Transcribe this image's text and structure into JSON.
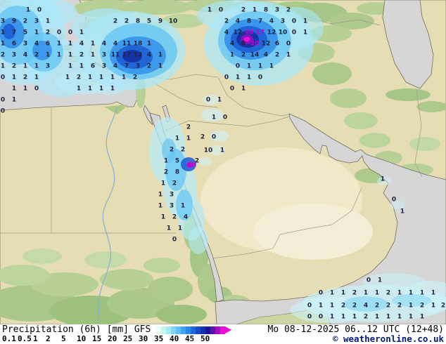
{
  "title_bar": {
    "product": "Precipitation (6h) [mm] GFS",
    "datetime": "Mo 08-12-2025 06..12 UTC (12+48)",
    "copyright": "© weatheronline.co.uk"
  },
  "legend": {
    "ticks": [
      "0.1",
      "0.5",
      "1",
      "2",
      "5",
      "10",
      "15",
      "20",
      "25",
      "30",
      "35",
      "40",
      "45",
      "50"
    ],
    "colors": [
      "#e8fdf9",
      "#c8f5f0",
      "#a5e9f2",
      "#7fd6f4",
      "#5cc0f5",
      "#3fa5f2",
      "#2b86ea",
      "#1f66dc",
      "#1847c8",
      "#1230b2",
      "#1b1698",
      "#5a12aa",
      "#a50fc4",
      "#ee0ed8"
    ]
  },
  "map": {
    "colors": {
      "sea": "#d6d6d6",
      "land": "#e7ddb4",
      "vegetation": "#b7d096",
      "value_text": "#23233f",
      "value_text_high": "#c400cc"
    },
    "points": [
      [
        40,
        15,
        "1"
      ],
      [
        56,
        15,
        "0"
      ],
      [
        4,
        31,
        "3"
      ],
      [
        20,
        31,
        "9"
      ],
      [
        36,
        31,
        "2"
      ],
      [
        52,
        31,
        "3"
      ],
      [
        68,
        31,
        "1"
      ],
      [
        4,
        47,
        "1"
      ],
      [
        20,
        47,
        "7"
      ],
      [
        36,
        47,
        "5"
      ],
      [
        52,
        47,
        "1"
      ],
      [
        68,
        47,
        "2"
      ],
      [
        84,
        47,
        "0"
      ],
      [
        4,
        63,
        "1"
      ],
      [
        20,
        63,
        "6"
      ],
      [
        36,
        63,
        "3"
      ],
      [
        52,
        63,
        "4"
      ],
      [
        68,
        63,
        "6"
      ],
      [
        84,
        63,
        "1"
      ],
      [
        4,
        79,
        "2"
      ],
      [
        20,
        79,
        "3"
      ],
      [
        36,
        79,
        "4"
      ],
      [
        52,
        79,
        "2"
      ],
      [
        68,
        79,
        "1"
      ],
      [
        84,
        79,
        "1"
      ],
      [
        4,
        95,
        "1"
      ],
      [
        20,
        95,
        "2"
      ],
      [
        36,
        95,
        "1"
      ],
      [
        52,
        95,
        "1"
      ],
      [
        68,
        95,
        "3"
      ],
      [
        4,
        111,
        "0"
      ],
      [
        20,
        111,
        "1"
      ],
      [
        36,
        111,
        "2"
      ],
      [
        52,
        111,
        "1"
      ],
      [
        20,
        127,
        "1"
      ],
      [
        36,
        127,
        "1"
      ],
      [
        52,
        127,
        "0"
      ],
      [
        4,
        143,
        "0"
      ],
      [
        20,
        143,
        "1"
      ],
      [
        4,
        159,
        "0"
      ],
      [
        100,
        47,
        "0"
      ],
      [
        116,
        47,
        "1"
      ],
      [
        164,
        31,
        "2"
      ],
      [
        180,
        31,
        "2"
      ],
      [
        196,
        31,
        "8"
      ],
      [
        212,
        31,
        "5"
      ],
      [
        228,
        31,
        "9"
      ],
      [
        246,
        31,
        "10"
      ],
      [
        100,
        63,
        "1"
      ],
      [
        116,
        63,
        "4"
      ],
      [
        132,
        63,
        "1"
      ],
      [
        148,
        63,
        "4"
      ],
      [
        164,
        63,
        "4"
      ],
      [
        180,
        63,
        "11"
      ],
      [
        196,
        63,
        "18"
      ],
      [
        212,
        63,
        "1"
      ],
      [
        100,
        79,
        "1"
      ],
      [
        116,
        79,
        "2"
      ],
      [
        132,
        79,
        "1"
      ],
      [
        148,
        79,
        "3"
      ],
      [
        164,
        79,
        "11"
      ],
      [
        180,
        79,
        "17"
      ],
      [
        196,
        79,
        "12"
      ],
      [
        212,
        79,
        "4"
      ],
      [
        228,
        79,
        "1"
      ],
      [
        100,
        95,
        "1"
      ],
      [
        116,
        95,
        "1"
      ],
      [
        132,
        95,
        "6"
      ],
      [
        148,
        95,
        "3"
      ],
      [
        164,
        95,
        "4"
      ],
      [
        180,
        95,
        "7"
      ],
      [
        196,
        95,
        "3"
      ],
      [
        212,
        95,
        "2"
      ],
      [
        228,
        95,
        "1"
      ],
      [
        96,
        111,
        "1"
      ],
      [
        112,
        111,
        "2"
      ],
      [
        128,
        111,
        "1"
      ],
      [
        144,
        111,
        "1"
      ],
      [
        160,
        111,
        "1"
      ],
      [
        176,
        111,
        "1"
      ],
      [
        192,
        111,
        "2"
      ],
      [
        112,
        127,
        "1"
      ],
      [
        128,
        127,
        "1"
      ],
      [
        144,
        127,
        "1"
      ],
      [
        160,
        127,
        "1"
      ],
      [
        298,
        15,
        "1"
      ],
      [
        314,
        15,
        "0"
      ],
      [
        346,
        15,
        "2"
      ],
      [
        362,
        15,
        "1"
      ],
      [
        378,
        15,
        "8"
      ],
      [
        394,
        15,
        "3"
      ],
      [
        410,
        15,
        "2"
      ],
      [
        322,
        31,
        "2"
      ],
      [
        338,
        31,
        "4"
      ],
      [
        354,
        31,
        "8"
      ],
      [
        370,
        31,
        "7"
      ],
      [
        386,
        31,
        "4"
      ],
      [
        402,
        31,
        "3"
      ],
      [
        418,
        31,
        "0"
      ],
      [
        434,
        31,
        "1"
      ],
      [
        322,
        47,
        "4"
      ],
      [
        338,
        47,
        "12"
      ],
      [
        354,
        47,
        "40",
        "p"
      ],
      [
        370,
        47,
        "17",
        "p"
      ],
      [
        386,
        47,
        "12"
      ],
      [
        402,
        47,
        "10"
      ],
      [
        418,
        47,
        "0"
      ],
      [
        434,
        47,
        "1"
      ],
      [
        330,
        63,
        "4"
      ],
      [
        346,
        63,
        "8"
      ],
      [
        362,
        63,
        "20",
        "p"
      ],
      [
        378,
        63,
        "12"
      ],
      [
        394,
        63,
        "6"
      ],
      [
        410,
        63,
        "0"
      ],
      [
        330,
        79,
        "1"
      ],
      [
        346,
        79,
        "2"
      ],
      [
        362,
        79,
        "14"
      ],
      [
        378,
        79,
        "4"
      ],
      [
        394,
        79,
        "2"
      ],
      [
        410,
        79,
        "1"
      ],
      [
        338,
        95,
        "0"
      ],
      [
        354,
        95,
        "1"
      ],
      [
        370,
        95,
        "1"
      ],
      [
        386,
        95,
        "1"
      ],
      [
        322,
        111,
        "0"
      ],
      [
        338,
        111,
        "1"
      ],
      [
        354,
        111,
        "1"
      ],
      [
        370,
        111,
        "0"
      ],
      [
        330,
        127,
        "0"
      ],
      [
        346,
        127,
        "1"
      ],
      [
        296,
        143,
        "0"
      ],
      [
        312,
        143,
        "1"
      ],
      [
        304,
        168,
        "1"
      ],
      [
        320,
        168,
        "0"
      ],
      [
        288,
        196,
        "2"
      ],
      [
        304,
        196,
        "0"
      ],
      [
        296,
        215,
        "10"
      ],
      [
        316,
        215,
        "1"
      ],
      [
        280,
        230,
        "2"
      ],
      [
        268,
        182,
        "2"
      ],
      [
        252,
        198,
        "1"
      ],
      [
        268,
        198,
        "1"
      ],
      [
        244,
        214,
        "2"
      ],
      [
        260,
        214,
        "2"
      ],
      [
        236,
        230,
        "1"
      ],
      [
        252,
        230,
        "5"
      ],
      [
        272,
        236,
        "40",
        "p"
      ],
      [
        236,
        246,
        "2"
      ],
      [
        252,
        246,
        "8"
      ],
      [
        232,
        262,
        "1"
      ],
      [
        248,
        262,
        "2"
      ],
      [
        228,
        278,
        "1"
      ],
      [
        244,
        278,
        "3"
      ],
      [
        228,
        294,
        "1"
      ],
      [
        244,
        294,
        "3"
      ],
      [
        260,
        294,
        "1"
      ],
      [
        232,
        310,
        "1"
      ],
      [
        248,
        310,
        "2"
      ],
      [
        264,
        310,
        "4"
      ],
      [
        240,
        326,
        "1"
      ],
      [
        256,
        326,
        "1"
      ],
      [
        248,
        342,
        "0"
      ],
      [
        544,
        256,
        "1"
      ],
      [
        560,
        285,
        "0"
      ],
      [
        572,
        302,
        "1"
      ],
      [
        524,
        400,
        "0"
      ],
      [
        540,
        400,
        "1"
      ],
      [
        456,
        418,
        "0"
      ],
      [
        472,
        418,
        "1"
      ],
      [
        488,
        418,
        "1"
      ],
      [
        504,
        418,
        "2"
      ],
      [
        520,
        418,
        "1"
      ],
      [
        536,
        418,
        "1"
      ],
      [
        552,
        418,
        "2"
      ],
      [
        568,
        418,
        "1"
      ],
      [
        584,
        418,
        "1"
      ],
      [
        600,
        418,
        "1"
      ],
      [
        616,
        418,
        "1"
      ],
      [
        440,
        436,
        "0"
      ],
      [
        456,
        436,
        "1"
      ],
      [
        472,
        436,
        "1"
      ],
      [
        488,
        436,
        "2"
      ],
      [
        504,
        436,
        "2"
      ],
      [
        520,
        436,
        "4"
      ],
      [
        536,
        436,
        "2"
      ],
      [
        552,
        436,
        "2"
      ],
      [
        568,
        436,
        "2"
      ],
      [
        584,
        436,
        "1"
      ],
      [
        600,
        436,
        "2"
      ],
      [
        616,
        436,
        "1"
      ],
      [
        630,
        436,
        "2"
      ],
      [
        440,
        452,
        "0"
      ],
      [
        456,
        452,
        "0"
      ],
      [
        472,
        452,
        "1"
      ],
      [
        488,
        452,
        "1"
      ],
      [
        504,
        452,
        "1"
      ],
      [
        520,
        452,
        "2"
      ],
      [
        536,
        452,
        "1"
      ],
      [
        552,
        452,
        "1"
      ],
      [
        568,
        452,
        "1"
      ],
      [
        584,
        452,
        "1"
      ],
      [
        600,
        452,
        "1"
      ]
    ]
  }
}
